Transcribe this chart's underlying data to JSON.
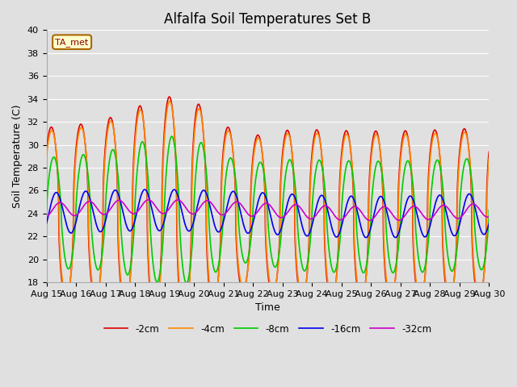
{
  "title": "Alfalfa Soil Temperatures Set B",
  "xlabel": "Time",
  "ylabel": "Soil Temperature (C)",
  "ylim": [
    18,
    40
  ],
  "xlim": [
    0,
    360
  ],
  "xtick_labels": [
    "Aug 15",
    "Aug 16",
    "Aug 17",
    "Aug 18",
    "Aug 19",
    "Aug 20",
    "Aug 21",
    "Aug 22",
    "Aug 23",
    "Aug 24",
    "Aug 25",
    "Aug 26",
    "Aug 27",
    "Aug 28",
    "Aug 29",
    "Aug 30"
  ],
  "xtick_positions": [
    0,
    24,
    48,
    72,
    96,
    120,
    144,
    168,
    192,
    216,
    240,
    264,
    288,
    312,
    336,
    360
  ],
  "annotation_text": "TA_met",
  "line_colors": [
    "#dd0000",
    "#ff8800",
    "#00cc00",
    "#0000ee",
    "#cc00cc"
  ],
  "line_labels": [
    "-2cm",
    "-4cm",
    "-8cm",
    "-16cm",
    "-32cm"
  ],
  "bg_color": "#e0e0e0",
  "plot_bg_color": "#e0e0e0",
  "grid_color": "#ffffff",
  "title_fontsize": 12,
  "axis_fontsize": 9,
  "tick_fontsize": 8
}
